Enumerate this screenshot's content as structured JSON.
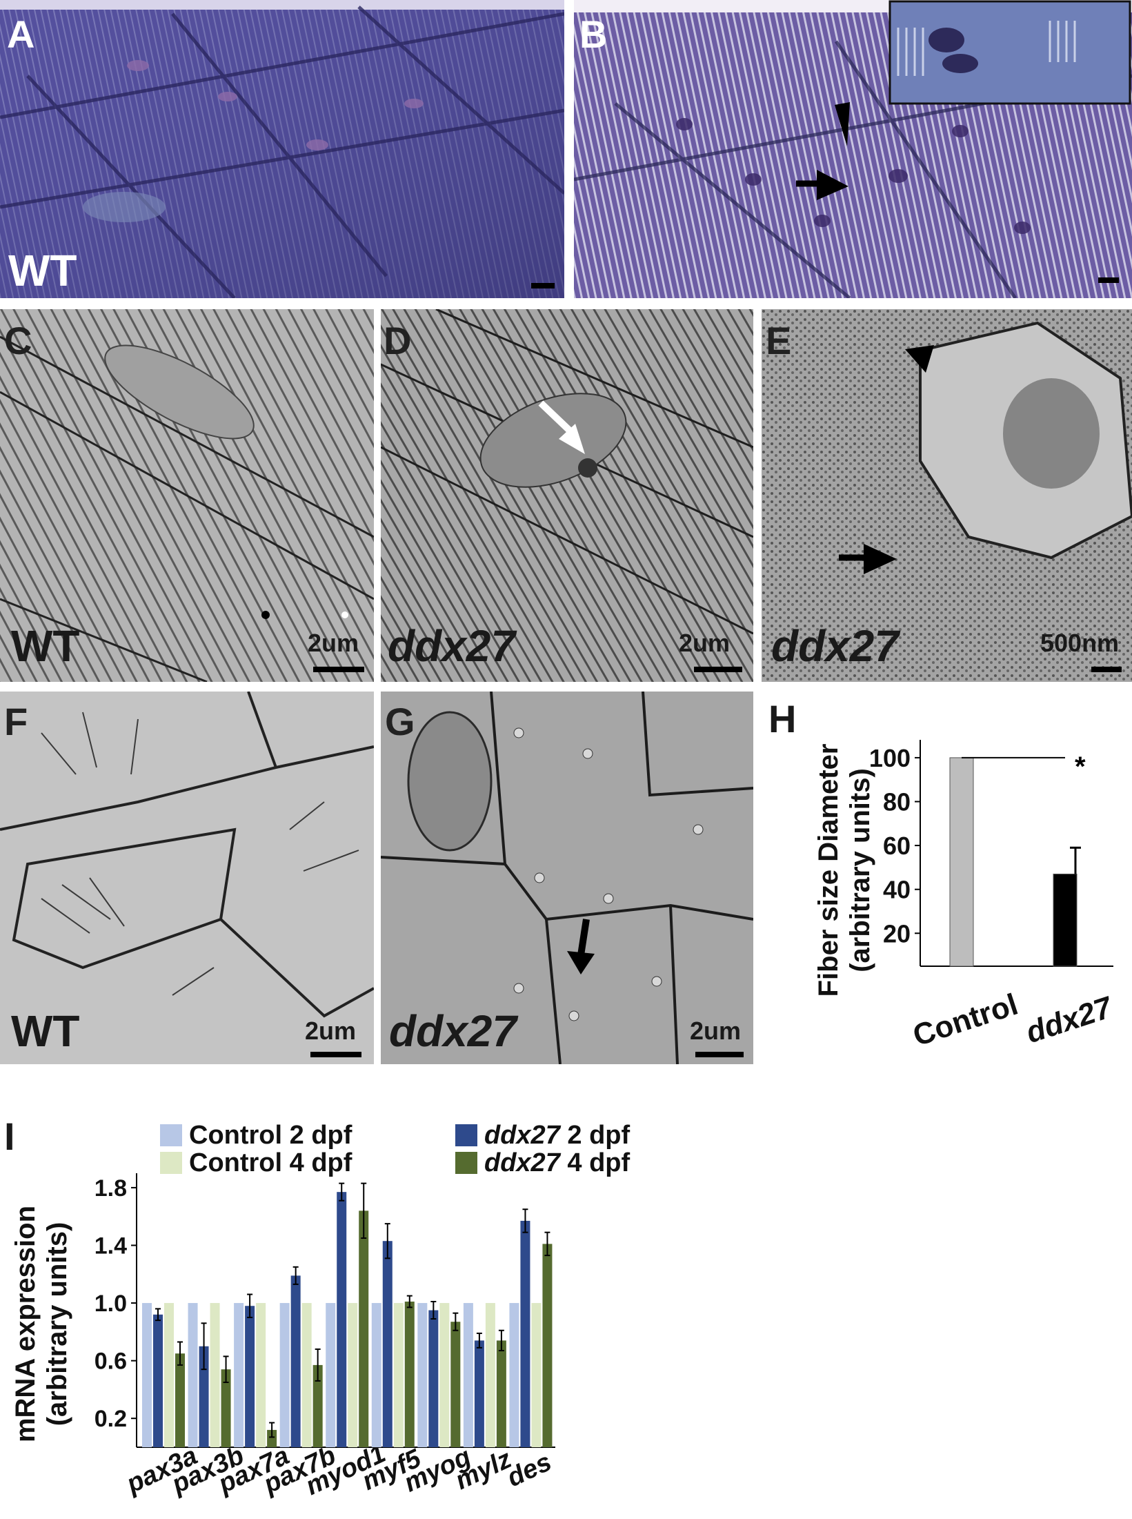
{
  "panels": {
    "A": {
      "label": "A",
      "genotype": "WT"
    },
    "B": {
      "label": "B"
    },
    "C": {
      "label": "C",
      "genotype": "WT",
      "scale": "2um"
    },
    "D": {
      "label": "D",
      "genotype": "ddx27",
      "scale": "2um"
    },
    "E": {
      "label": "E",
      "genotype": "ddx27",
      "scale": "500nm"
    },
    "F": {
      "label": "F",
      "genotype": "WT",
      "scale": "2um"
    },
    "G": {
      "label": "G",
      "genotype": "ddx27",
      "scale": "2um"
    },
    "H": {
      "label": "H"
    },
    "I": {
      "label": "I"
    }
  },
  "chart_data": [
    {
      "type": "bar",
      "panel": "H",
      "categories": [
        "Control",
        "ddx27"
      ],
      "values": [
        100,
        47
      ],
      "errors": [
        0,
        12
      ],
      "colors": [
        "#bdbdbd",
        "#000000"
      ],
      "ylabel_line1": "Fiber size Diameter",
      "ylabel_line2": "(arbitrary units)",
      "yticks": [
        20,
        40,
        60,
        80,
        100
      ],
      "ylim": [
        5,
        105
      ],
      "significance": "*",
      "grid": false
    },
    {
      "type": "bar",
      "panel": "I",
      "categories": [
        "pax3a",
        "pax3b",
        "pax7a",
        "pax7b",
        "myod1",
        "myf5",
        "myog",
        "mylz",
        "des"
      ],
      "series": [
        {
          "name_prefix": "",
          "name_main": "Control",
          "name_suffix": " 2 dpf",
          "color": "#b7c7e6",
          "values": [
            1.0,
            1.0,
            1.0,
            1.0,
            1.0,
            1.0,
            1.0,
            1.0,
            1.0
          ],
          "errors": [
            0,
            0,
            0,
            0,
            0,
            0,
            0,
            0,
            0
          ]
        },
        {
          "name_prefix": "",
          "name_main": "ddx27",
          "name_suffix": " 2 dpf",
          "italic": true,
          "color": "#2e4a8c",
          "values": [
            0.92,
            0.7,
            0.98,
            1.19,
            1.77,
            1.43,
            0.95,
            0.74,
            1.57
          ],
          "errors": [
            0.04,
            0.16,
            0.08,
            0.06,
            0.06,
            0.12,
            0.06,
            0.05,
            0.08
          ]
        },
        {
          "name_prefix": "",
          "name_main": "Control",
          "name_suffix": " 4 dpf",
          "color": "#dde8c4",
          "values": [
            1.0,
            1.0,
            1.0,
            1.0,
            1.0,
            1.0,
            1.0,
            1.0,
            1.0
          ],
          "errors": [
            0,
            0,
            0,
            0,
            0,
            0,
            0,
            0,
            0
          ]
        },
        {
          "name_prefix": "",
          "name_main": "ddx27",
          "name_suffix": " 4 dpf",
          "italic": true,
          "color": "#556b2f",
          "values": [
            0.65,
            0.54,
            0.12,
            0.57,
            1.64,
            1.01,
            0.87,
            0.74,
            1.41
          ],
          "errors": [
            0.08,
            0.09,
            0.05,
            0.11,
            0.19,
            0.04,
            0.06,
            0.07,
            0.08
          ]
        }
      ],
      "ylabel_line1": "mRNA expression",
      "ylabel_line2": "(arbitrary units)",
      "yticks": [
        0.2,
        0.6,
        1.0,
        1.4,
        1.8
      ],
      "ylim": [
        0.0,
        1.9
      ],
      "legend_position": "top",
      "grid": false
    }
  ]
}
